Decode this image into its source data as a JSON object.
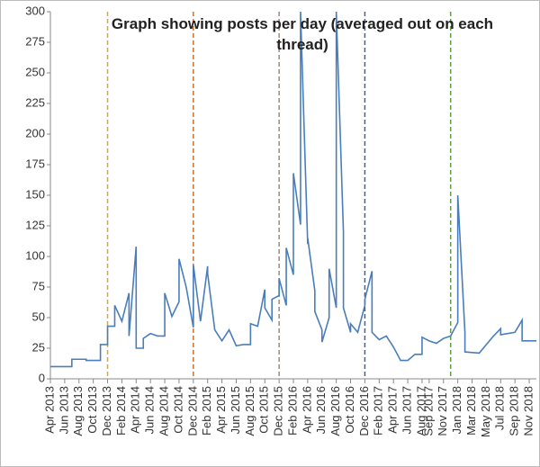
{
  "chart_data": {
    "type": "line",
    "title": "Graph showing posts per day (averaged out on each thread)",
    "color": "#4a7ebb",
    "x": [
      "2013-04",
      "2013-07",
      "2013-07",
      "2013-09",
      "2013-09",
      "2013-11",
      "2013-11",
      "2013-12",
      "2013-12",
      "2014-01",
      "2014-01",
      "2014-02",
      "2014-03",
      "2014-03",
      "2014-04",
      "2014-04",
      "2014-05",
      "2014-05",
      "2014-06",
      "2014-07",
      "2014-08",
      "2014-08",
      "2014-09",
      "2014-10",
      "2014-10",
      "2014-11",
      "2014-12",
      "2014-12",
      "2015-01",
      "2015-02",
      "2015-02",
      "2015-03",
      "2015-04",
      "2015-05",
      "2015-06",
      "2015-07",
      "2015-08",
      "2015-08",
      "2015-09",
      "2015-10",
      "2015-10",
      "2015-11",
      "2015-11",
      "2015-12",
      "2015-12",
      "2016-01",
      "2016-01",
      "2016-02",
      "2016-02",
      "2016-03",
      "2016-03",
      "2016-04",
      "2016-04",
      "2016-05",
      "2016-05",
      "2016-06",
      "2016-06",
      "2016-07",
      "2016-07",
      "2016-08",
      "2016-08",
      "2016-09",
      "2016-09",
      "2016-10",
      "2016-10",
      "2016-11",
      "2016-12",
      "2016-12",
      "2017-01",
      "2017-01",
      "2017-02",
      "2017-03",
      "2017-04",
      "2017-05",
      "2017-06",
      "2017-07",
      "2017-08",
      "2017-08",
      "2017-09",
      "2017-10",
      "2017-11",
      "2017-12",
      "2018-01",
      "2018-01",
      "2018-02",
      "2018-02",
      "2018-04",
      "2018-05",
      "2018-06",
      "2018-07",
      "2018-07",
      "2018-09",
      "2018-10",
      "2018-10",
      "2018-12"
    ],
    "values": [
      10,
      10,
      16,
      16,
      15,
      15,
      28,
      28,
      43,
      43,
      60,
      47,
      70,
      35,
      108,
      25,
      25,
      33,
      37,
      35,
      35,
      70,
      51,
      63,
      98,
      75,
      42,
      93,
      47,
      92,
      86,
      40,
      31,
      40,
      27,
      28,
      28,
      45,
      43,
      73,
      58,
      48,
      65,
      68,
      82,
      60,
      107,
      85,
      168,
      126,
      300,
      110,
      115,
      72,
      55,
      40,
      30,
      50,
      90,
      58,
      300,
      120,
      58,
      38,
      45,
      38,
      60,
      65,
      88,
      38,
      32,
      35,
      26,
      15,
      15,
      20,
      20,
      34,
      31,
      29,
      33,
      35,
      46,
      150,
      38,
      22,
      21,
      28,
      35,
      41,
      36,
      38,
      48,
      31,
      31
    ],
    "markers": [
      {
        "x": "2013-12",
        "color": "#e6a817"
      },
      {
        "x": "2014-12",
        "color": "#d0722b"
      },
      {
        "x": "2015-12",
        "color": "#a08a80"
      },
      {
        "x": "2016-12",
        "color": "#3a5fb0"
      },
      {
        "x": "2017-12",
        "color": "#5fa040"
      }
    ],
    "xlim": [
      "2013-04",
      "2018-12"
    ],
    "xticks": [
      {
        "value": "2013-04",
        "label": "Apr 2013"
      },
      {
        "value": "2013-06",
        "label": "Jun 2013"
      },
      {
        "value": "2013-08",
        "label": "Aug 2013"
      },
      {
        "value": "2013-10",
        "label": "Oct 2013"
      },
      {
        "value": "2013-12",
        "label": "Dec 2013"
      },
      {
        "value": "2014-02",
        "label": "Feb 2014"
      },
      {
        "value": "2014-04",
        "label": "Apr 2014"
      },
      {
        "value": "2014-06",
        "label": "Jun 2014"
      },
      {
        "value": "2014-08",
        "label": "Aug 2014"
      },
      {
        "value": "2014-10",
        "label": "Oct 2014"
      },
      {
        "value": "2014-12",
        "label": "Dec 2014"
      },
      {
        "value": "2015-02",
        "label": "Feb 2015"
      },
      {
        "value": "2015-04",
        "label": "Apr 2015"
      },
      {
        "value": "2015-06",
        "label": "Jun 2015"
      },
      {
        "value": "2015-08",
        "label": "Aug 2015"
      },
      {
        "value": "2015-10",
        "label": "Oct 2015"
      },
      {
        "value": "2015-12",
        "label": "Dec 2015"
      },
      {
        "value": "2016-02",
        "label": "Feb 2016"
      },
      {
        "value": "2016-04",
        "label": "Apr 2016"
      },
      {
        "value": "2016-06",
        "label": "Jun 2016"
      },
      {
        "value": "2016-08",
        "label": "Aug 2016"
      },
      {
        "value": "2016-10",
        "label": "Oct 2016"
      },
      {
        "value": "2016-12",
        "label": "Dec 2016"
      },
      {
        "value": "2017-02",
        "label": "Feb 2017"
      },
      {
        "value": "2017-04",
        "label": "Apr 2017"
      },
      {
        "value": "2017-06",
        "label": "Jun 2017"
      },
      {
        "value": "2017-08",
        "label": "Aug 2017"
      },
      {
        "value": "2017-09",
        "label": "Sep 2017"
      },
      {
        "value": "2017-11",
        "label": "Nov 2017"
      },
      {
        "value": "2018-01",
        "label": "Jan 2018"
      },
      {
        "value": "2018-03",
        "label": "Mar 2018"
      },
      {
        "value": "2018-05",
        "label": "May 2018"
      },
      {
        "value": "2018-07",
        "label": "Jul 2018"
      },
      {
        "value": "2018-09",
        "label": "Sep 2018"
      },
      {
        "value": "2018-11",
        "label": "Nov 2018"
      }
    ],
    "ylim": [
      0,
      300
    ],
    "yticks": [
      0,
      25,
      50,
      75,
      100,
      125,
      150,
      175,
      200,
      225,
      250,
      275,
      300
    ]
  }
}
